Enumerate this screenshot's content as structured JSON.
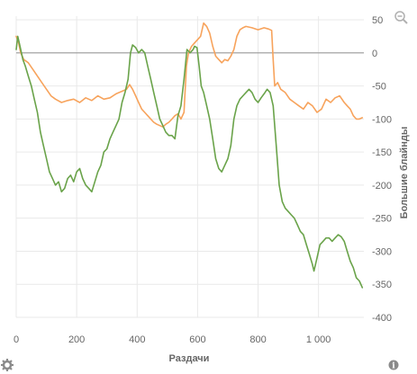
{
  "toolbar": {
    "zoom_icon": "magnifier-minus-icon",
    "settings_icon": "gear-icon",
    "info_icon": "info-icon",
    "info_glyph": "i"
  },
  "chart_data": {
    "type": "line",
    "title": "",
    "xlabel": "Раздачи",
    "ylabel": "Большие блайнды",
    "xlim": [
      0,
      1150
    ],
    "ylim": [
      -400,
      50
    ],
    "x_ticks": [
      0,
      200,
      400,
      600,
      800,
      1000
    ],
    "x_tick_labels": [
      "0",
      "200",
      "400",
      "600",
      "800",
      "1 000"
    ],
    "y_ticks": [
      50,
      0,
      -50,
      -100,
      -150,
      -200,
      -250,
      -300,
      -350,
      -400
    ],
    "y_tick_labels": [
      "50",
      "0",
      "-50",
      "-100",
      "-150",
      "-200",
      "-250",
      "-300",
      "-350",
      "-400"
    ],
    "y_axis_side": "right",
    "grid": true,
    "legend": "none",
    "reference_line": 0,
    "series": [
      {
        "color": "#f7a35c",
        "points": [
          [
            0,
            25
          ],
          [
            8,
            15
          ],
          [
            15,
            0
          ],
          [
            25,
            -10
          ],
          [
            40,
            -15
          ],
          [
            55,
            -25
          ],
          [
            70,
            -35
          ],
          [
            85,
            -45
          ],
          [
            100,
            -55
          ],
          [
            115,
            -65
          ],
          [
            130,
            -70
          ],
          [
            150,
            -75
          ],
          [
            170,
            -72
          ],
          [
            190,
            -70
          ],
          [
            210,
            -75
          ],
          [
            230,
            -68
          ],
          [
            250,
            -72
          ],
          [
            270,
            -65
          ],
          [
            290,
            -70
          ],
          [
            310,
            -68
          ],
          [
            330,
            -62
          ],
          [
            350,
            -58
          ],
          [
            365,
            -55
          ],
          [
            375,
            -48
          ],
          [
            385,
            -55
          ],
          [
            395,
            -65
          ],
          [
            405,
            -75
          ],
          [
            415,
            -85
          ],
          [
            425,
            -90
          ],
          [
            435,
            -95
          ],
          [
            445,
            -100
          ],
          [
            455,
            -105
          ],
          [
            465,
            -108
          ],
          [
            475,
            -110
          ],
          [
            485,
            -112
          ],
          [
            495,
            -108
          ],
          [
            505,
            -105
          ],
          [
            515,
            -100
          ],
          [
            525,
            -95
          ],
          [
            535,
            -92
          ],
          [
            545,
            -100
          ],
          [
            555,
            -90
          ],
          [
            563,
            -20
          ],
          [
            570,
            0
          ],
          [
            580,
            10
          ],
          [
            590,
            15
          ],
          [
            600,
            20
          ],
          [
            610,
            25
          ],
          [
            620,
            45
          ],
          [
            630,
            40
          ],
          [
            640,
            30
          ],
          [
            650,
            10
          ],
          [
            660,
            -5
          ],
          [
            670,
            -10
          ],
          [
            680,
            -15
          ],
          [
            690,
            -10
          ],
          [
            700,
            -12
          ],
          [
            710,
            -5
          ],
          [
            720,
            5
          ],
          [
            730,
            25
          ],
          [
            740,
            35
          ],
          [
            750,
            38
          ],
          [
            760,
            40
          ],
          [
            780,
            38
          ],
          [
            800,
            35
          ],
          [
            820,
            38
          ],
          [
            835,
            36
          ],
          [
            845,
            34
          ],
          [
            850,
            -10
          ],
          [
            855,
            -50
          ],
          [
            865,
            -45
          ],
          [
            875,
            -55
          ],
          [
            890,
            -60
          ],
          [
            905,
            -70
          ],
          [
            920,
            -75
          ],
          [
            935,
            -80
          ],
          [
            950,
            -85
          ],
          [
            965,
            -75
          ],
          [
            980,
            -80
          ],
          [
            995,
            -90
          ],
          [
            1010,
            -85
          ],
          [
            1025,
            -70
          ],
          [
            1040,
            -75
          ],
          [
            1055,
            -68
          ],
          [
            1070,
            -65
          ],
          [
            1085,
            -75
          ],
          [
            1095,
            -80
          ],
          [
            1105,
            -85
          ],
          [
            1115,
            -95
          ],
          [
            1125,
            -100
          ],
          [
            1135,
            -100
          ],
          [
            1145,
            -98
          ]
        ]
      },
      {
        "color": "#6aa34a",
        "points": [
          [
            0,
            5
          ],
          [
            5,
            25
          ],
          [
            10,
            15
          ],
          [
            15,
            5
          ],
          [
            22,
            -10
          ],
          [
            30,
            -20
          ],
          [
            40,
            -35
          ],
          [
            50,
            -50
          ],
          [
            60,
            -70
          ],
          [
            70,
            -90
          ],
          [
            80,
            -120
          ],
          [
            90,
            -140
          ],
          [
            100,
            -160
          ],
          [
            110,
            -180
          ],
          [
            120,
            -190
          ],
          [
            130,
            -200
          ],
          [
            140,
            -195
          ],
          [
            150,
            -210
          ],
          [
            160,
            -205
          ],
          [
            170,
            -190
          ],
          [
            180,
            -185
          ],
          [
            190,
            -195
          ],
          [
            200,
            -180
          ],
          [
            210,
            -175
          ],
          [
            220,
            -190
          ],
          [
            230,
            -200
          ],
          [
            240,
            -205
          ],
          [
            250,
            -210
          ],
          [
            260,
            -195
          ],
          [
            270,
            -180
          ],
          [
            280,
            -170
          ],
          [
            290,
            -150
          ],
          [
            300,
            -145
          ],
          [
            310,
            -130
          ],
          [
            320,
            -120
          ],
          [
            330,
            -110
          ],
          [
            340,
            -100
          ],
          [
            350,
            -75
          ],
          [
            360,
            -60
          ],
          [
            370,
            -40
          ],
          [
            378,
            0
          ],
          [
            385,
            12
          ],
          [
            395,
            8
          ],
          [
            405,
            0
          ],
          [
            415,
            5
          ],
          [
            425,
            0
          ],
          [
            435,
            -20
          ],
          [
            445,
            -40
          ],
          [
            455,
            -60
          ],
          [
            465,
            -80
          ],
          [
            475,
            -100
          ],
          [
            485,
            -110
          ],
          [
            495,
            -120
          ],
          [
            505,
            -125
          ],
          [
            515,
            -125
          ],
          [
            525,
            -130
          ],
          [
            535,
            -95
          ],
          [
            545,
            -80
          ],
          [
            555,
            -40
          ],
          [
            565,
            5
          ],
          [
            575,
            0
          ],
          [
            585,
            5
          ],
          [
            590,
            10
          ],
          [
            598,
            8
          ],
          [
            605,
            -20
          ],
          [
            612,
            -50
          ],
          [
            620,
            -60
          ],
          [
            630,
            -80
          ],
          [
            640,
            -100
          ],
          [
            650,
            -130
          ],
          [
            660,
            -160
          ],
          [
            670,
            -175
          ],
          [
            680,
            -180
          ],
          [
            690,
            -170
          ],
          [
            700,
            -160
          ],
          [
            710,
            -140
          ],
          [
            720,
            -100
          ],
          [
            730,
            -80
          ],
          [
            740,
            -70
          ],
          [
            750,
            -65
          ],
          [
            760,
            -60
          ],
          [
            770,
            -55
          ],
          [
            780,
            -60
          ],
          [
            790,
            -70
          ],
          [
            800,
            -75
          ],
          [
            810,
            -68
          ],
          [
            820,
            -62
          ],
          [
            830,
            -55
          ],
          [
            840,
            -60
          ],
          [
            850,
            -80
          ],
          [
            860,
            -140
          ],
          [
            870,
            -200
          ],
          [
            880,
            -225
          ],
          [
            890,
            -235
          ],
          [
            900,
            -240
          ],
          [
            910,
            -245
          ],
          [
            920,
            -250
          ],
          [
            930,
            -260
          ],
          [
            940,
            -270
          ],
          [
            950,
            -275
          ],
          [
            960,
            -290
          ],
          [
            970,
            -305
          ],
          [
            980,
            -320
          ],
          [
            985,
            -330
          ],
          [
            995,
            -310
          ],
          [
            1005,
            -290
          ],
          [
            1015,
            -285
          ],
          [
            1025,
            -280
          ],
          [
            1035,
            -280
          ],
          [
            1045,
            -285
          ],
          [
            1055,
            -280
          ],
          [
            1065,
            -275
          ],
          [
            1075,
            -278
          ],
          [
            1085,
            -285
          ],
          [
            1095,
            -300
          ],
          [
            1105,
            -315
          ],
          [
            1115,
            -325
          ],
          [
            1125,
            -340
          ],
          [
            1135,
            -345
          ],
          [
            1145,
            -355
          ]
        ]
      }
    ]
  }
}
